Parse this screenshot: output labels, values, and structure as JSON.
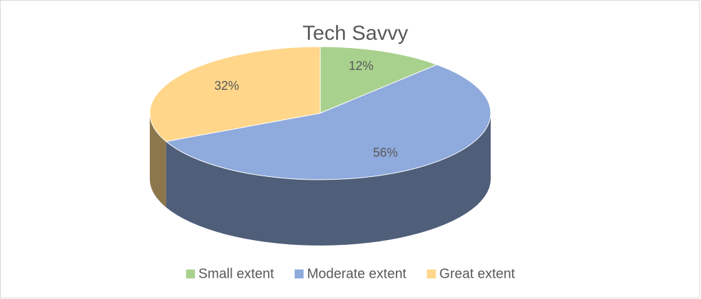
{
  "chart_data": {
    "type": "pie",
    "title": "Tech Savvy",
    "categories": [
      "Small extent",
      "Moderate extent",
      "Great extent"
    ],
    "values": [
      12,
      56,
      32
    ],
    "value_labels": [
      "12%",
      "56%",
      "32%"
    ],
    "colors": [
      "#a9d18e",
      "#8faadc",
      "#ffd68a"
    ],
    "legend": "bottom"
  }
}
